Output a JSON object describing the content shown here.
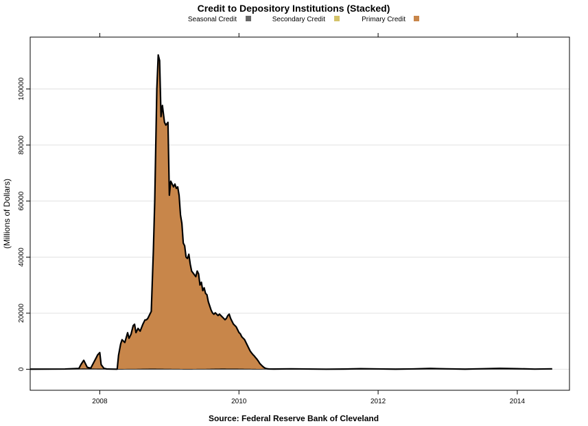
{
  "chart_data": {
    "type": "area",
    "title": "Credit to Depository Institutions (Stacked)",
    "ylabel": "(Millions of Dollars)",
    "source": "Source: Federal Reserve Bank of Cleveland",
    "xlim": [
      2007.0,
      2014.75
    ],
    "ylim": [
      -7500,
      118500
    ],
    "x_ticks": [
      2008,
      2010,
      2012,
      2014
    ],
    "y_ticks": [
      0,
      20000,
      40000,
      60000,
      80000,
      100000
    ],
    "grid": "horizontal",
    "legend_placement": "top",
    "series": [
      {
        "name": "Seasonal Credit",
        "color": "#666666",
        "x": [
          2007.0,
          2007.5,
          2007.75,
          2008.0,
          2008.25,
          2008.5,
          2008.75,
          2009.0,
          2009.25,
          2009.5,
          2009.75,
          2010.0,
          2010.25,
          2010.5,
          2010.75,
          2011.0,
          2011.25,
          2011.5,
          2011.75,
          2012.0,
          2012.25,
          2012.5,
          2012.75,
          2013.0,
          2013.25,
          2013.5,
          2013.75,
          2014.0,
          2014.25,
          2014.5
        ],
        "values": [
          30,
          80,
          200,
          150,
          20,
          60,
          150,
          80,
          20,
          60,
          150,
          80,
          20,
          60,
          150,
          80,
          20,
          60,
          200,
          120,
          30,
          120,
          280,
          150,
          40,
          180,
          320,
          200,
          50,
          150
        ]
      },
      {
        "name": "Secondary Credit",
        "color": "#d4c36a",
        "x": [
          2007.0,
          2008.0,
          2008.8,
          2009.0,
          2009.5,
          2010.0,
          2010.4,
          2011.0,
          2012.0,
          2013.0,
          2014.5
        ],
        "values": [
          0,
          0,
          0,
          0,
          0,
          50,
          0,
          0,
          0,
          0,
          0
        ]
      },
      {
        "name": "Primary Credit",
        "color": "#c8864a",
        "x": [
          2007.0,
          2007.5,
          2007.7,
          2007.73,
          2007.77,
          2007.82,
          2007.87,
          2007.95,
          2007.97,
          2008.0,
          2008.02,
          2008.06,
          2008.1,
          2008.12,
          2008.18,
          2008.25,
          2008.27,
          2008.3,
          2008.32,
          2008.36,
          2008.4,
          2008.42,
          2008.45,
          2008.48,
          2008.5,
          2008.52,
          2008.55,
          2008.58,
          2008.62,
          2008.65,
          2008.67,
          2008.69,
          2008.72,
          2008.74,
          2008.77,
          2008.79,
          2008.82,
          2008.84,
          2008.86,
          2008.88,
          2008.9,
          2008.93,
          2008.95,
          2008.98,
          2009.0,
          2009.02,
          2009.04,
          2009.06,
          2009.08,
          2009.1,
          2009.12,
          2009.14,
          2009.16,
          2009.18,
          2009.2,
          2009.22,
          2009.24,
          2009.26,
          2009.28,
          2009.3,
          2009.32,
          2009.35,
          2009.38,
          2009.4,
          2009.42,
          2009.44,
          2009.46,
          2009.48,
          2009.5,
          2009.52,
          2009.54,
          2009.56,
          2009.58,
          2009.6,
          2009.62,
          2009.64,
          2009.66,
          2009.68,
          2009.7,
          2009.72,
          2009.74,
          2009.76,
          2009.78,
          2009.8,
          2009.82,
          2009.84,
          2009.86,
          2009.88,
          2009.9,
          2009.92,
          2009.94,
          2009.96,
          2009.98,
          2010.0,
          2010.02,
          2010.04,
          2010.06,
          2010.08,
          2010.1,
          2010.12,
          2010.14,
          2010.16,
          2010.18,
          2010.2,
          2010.22,
          2010.24,
          2010.26,
          2010.28,
          2010.3,
          2010.32,
          2010.34,
          2010.36,
          2010.38,
          2010.4,
          2010.42,
          2010.44,
          2010.5,
          2010.6,
          2011.0,
          2012.0,
          2013.0,
          2014.5
        ],
        "values": [
          0,
          0,
          100,
          1500,
          3000,
          500,
          200,
          4000,
          5000,
          5800,
          1500,
          200,
          0,
          0,
          0,
          0,
          5000,
          9000,
          10500,
          9500,
          13000,
          11000,
          12500,
          15500,
          16000,
          13000,
          14500,
          13500,
          16000,
          17500,
          17500,
          18000,
          19500,
          20500,
          42000,
          60000,
          100000,
          112000,
          110000,
          90000,
          94000,
          88000,
          87000,
          88000,
          62000,
          67000,
          66000,
          65000,
          66000,
          64500,
          65000,
          62000,
          55000,
          52000,
          45000,
          44000,
          40000,
          39500,
          41000,
          37500,
          35000,
          34000,
          33000,
          35000,
          34000,
          30000,
          31000,
          28000,
          29000,
          27000,
          26500,
          24000,
          22500,
          21000,
          20000,
          19500,
          20000,
          19500,
          19000,
          19500,
          19000,
          18500,
          18000,
          17500,
          18000,
          19000,
          19500,
          18000,
          17000,
          16000,
          15500,
          15000,
          14000,
          13000,
          12500,
          11500,
          11000,
          10500,
          9500,
          8500,
          7500,
          6500,
          5800,
          5200,
          4700,
          4100,
          3500,
          2800,
          2000,
          1500,
          1000,
          600,
          300,
          150,
          80,
          40,
          0,
          0,
          0,
          0,
          0,
          0
        ]
      }
    ]
  }
}
